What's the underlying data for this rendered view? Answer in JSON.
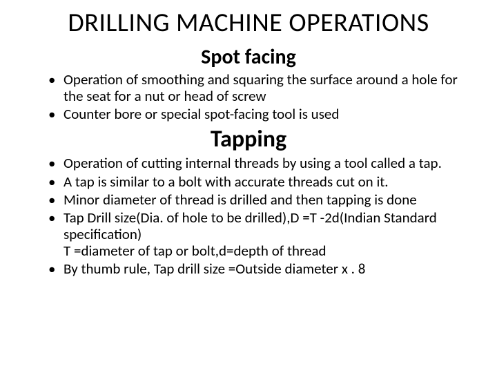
{
  "title": "DRILLING MACHINE OPERATIONS",
  "sections": [
    {
      "heading": "Spot facing",
      "heading_size": "normal",
      "bullets": [
        "Operation of smoothing and squaring the surface around a hole for the seat for a nut or head of screw",
        " Counter bore or special  spot-facing tool is used"
      ]
    },
    {
      "heading": "Tapping",
      "heading_size": "large",
      "bullets": [
        "Operation of cutting internal threads by using a tool called a tap.",
        "A tap is similar to a bolt with accurate threads cut on it.",
        "Minor diameter of thread is drilled and then tapping is done",
        "Tap Drill size(Dia. of hole to be drilled),D =T -2d(Indian Standard specification)\nT =diameter of tap or bolt,d=depth of thread",
        "By thumb rule, Tap drill size =Outside diameter x . 8"
      ]
    }
  ],
  "colors": {
    "text": "#000000",
    "background": "#ffffff"
  },
  "fonts": {
    "title_size": 38,
    "section_size": 30,
    "section_size_large": 34,
    "body_size": 21
  }
}
